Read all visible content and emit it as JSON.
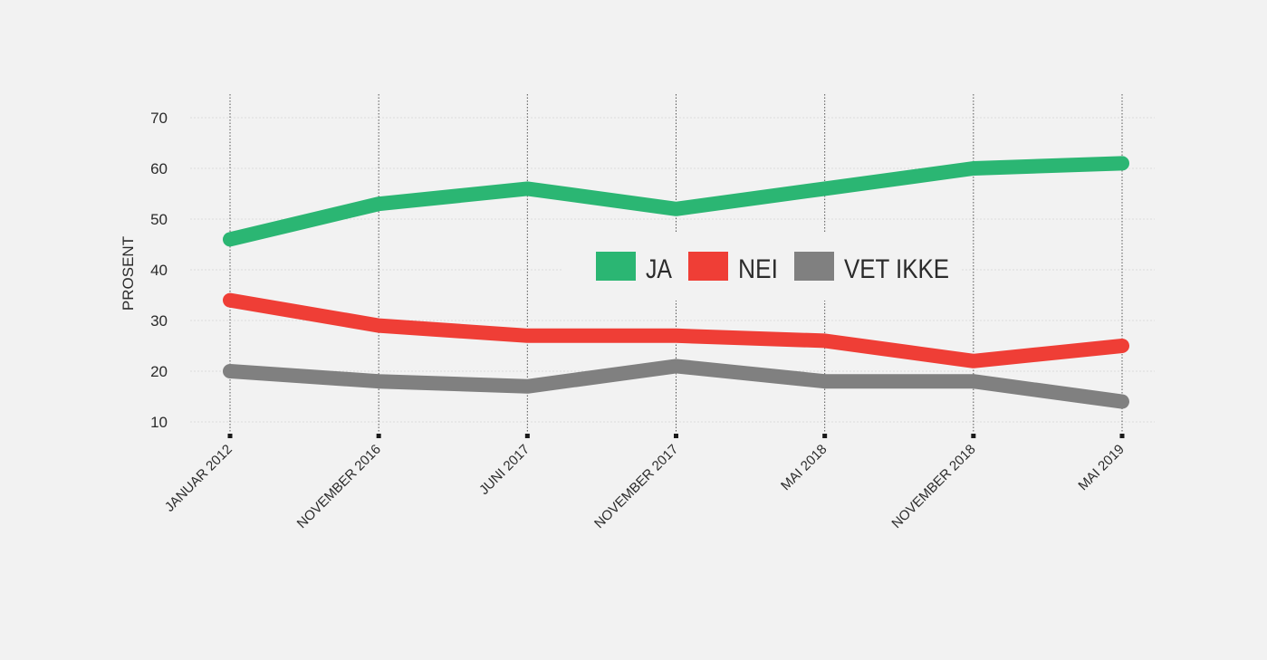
{
  "chart_data": {
    "type": "line",
    "title": "",
    "xlabel": "",
    "ylabel": "PROSENT",
    "ylim": [
      10,
      70
    ],
    "yticks": [
      10,
      20,
      30,
      40,
      50,
      60,
      70
    ],
    "grid": true,
    "legend_position": "center",
    "categories": [
      "JANUAR 2012",
      "NOVEMBER 2016",
      "JUNI 2017",
      "NOVEMBER 2017",
      "MAI 2018",
      "NOVEMBER 2018",
      "MAI 2019"
    ],
    "series": [
      {
        "name": "JA",
        "color": "#2bb673",
        "values": [
          46,
          53,
          56,
          52,
          56,
          60,
          61
        ]
      },
      {
        "name": "NEI",
        "color": "#ef3e36",
        "values": [
          34,
          29,
          27,
          27,
          26,
          22,
          25
        ]
      },
      {
        "name": "VET IKKE",
        "color": "#808080",
        "values": [
          20,
          18,
          17,
          21,
          18,
          18,
          14
        ]
      }
    ]
  }
}
